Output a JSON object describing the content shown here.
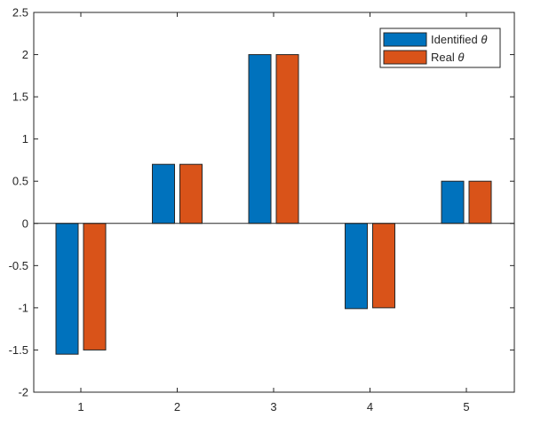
{
  "chart_data": {
    "type": "bar",
    "categories": [
      "1",
      "2",
      "3",
      "4",
      "5"
    ],
    "series": [
      {
        "name": "Identified",
        "values": [
          -1.55,
          0.7,
          2.0,
          -1.01,
          0.5
        ],
        "color": "#0072BD"
      },
      {
        "name": "Real",
        "values": [
          -1.5,
          0.7,
          2.0,
          -1.0,
          0.5
        ],
        "color": "#D95319"
      }
    ],
    "legend_symbol": "θ",
    "ylim": [
      -2,
      2.5
    ],
    "yticks": [
      "-2",
      "-1.5",
      "-1",
      "-0.5",
      "0",
      "0.5",
      "1",
      "1.5",
      "2",
      "2.5"
    ],
    "title": "",
    "xlabel": "",
    "ylabel": "",
    "grid": false,
    "legend_position": "top-right"
  }
}
